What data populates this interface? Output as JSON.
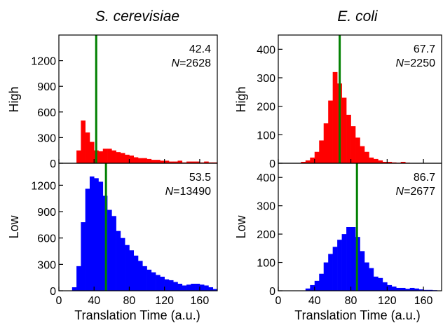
{
  "figure": {
    "columns": [
      {
        "title": "S. cerevisiae"
      },
      {
        "title": "E. coli"
      }
    ],
    "row_labels": [
      "High",
      "Low"
    ],
    "xlabel": "Translation Time (a.u.)"
  },
  "colors": {
    "high": "#ff0000",
    "low": "#0000ff",
    "median_line": "#008000"
  },
  "chart_data": [
    {
      "type": "bar",
      "panel": "S. cerevisiae / High",
      "xlim": [
        0,
        180
      ],
      "ylim": [
        0,
        1500
      ],
      "xticks": [
        "0",
        "40",
        "80",
        "120",
        "160"
      ],
      "yticks": [
        "0",
        "300",
        "600",
        "900",
        "1200"
      ],
      "bin_width": 5,
      "bins_start": [
        20,
        25,
        30,
        35,
        40,
        45,
        50,
        55,
        60,
        65,
        70,
        75,
        80,
        85,
        90,
        95,
        100,
        105,
        110,
        115,
        120,
        125,
        130,
        135,
        140,
        145,
        150,
        155,
        160,
        165,
        170,
        175
      ],
      "values": [
        150,
        500,
        360,
        250,
        150,
        140,
        170,
        170,
        150,
        130,
        120,
        100,
        90,
        70,
        60,
        60,
        50,
        40,
        40,
        30,
        30,
        20,
        20,
        30,
        10,
        20,
        20,
        20,
        10,
        20,
        10,
        10
      ],
      "median_x": 42.4,
      "annotation_value": "42.4",
      "annotation_n_label": "N",
      "annotation_n_value": "=2628"
    },
    {
      "type": "bar",
      "panel": "S. cerevisiae / Low",
      "xlim": [
        0,
        180
      ],
      "ylim": [
        0,
        1450
      ],
      "xticks": [
        "0",
        "40",
        "80",
        "120",
        "160"
      ],
      "yticks": [
        "0",
        "300",
        "600",
        "900",
        "1200"
      ],
      "bin_width": 5,
      "bins_start": [
        15,
        20,
        25,
        30,
        35,
        40,
        45,
        50,
        55,
        60,
        65,
        70,
        75,
        80,
        85,
        90,
        95,
        100,
        105,
        110,
        115,
        120,
        125,
        130,
        135,
        140,
        145,
        150,
        155,
        160,
        165,
        170,
        175
      ],
      "values": [
        40,
        280,
        780,
        1160,
        1300,
        1280,
        1240,
        1080,
        920,
        850,
        680,
        600,
        520,
        460,
        400,
        340,
        280,
        240,
        210,
        180,
        160,
        130,
        120,
        100,
        80,
        60,
        70,
        80,
        80,
        70,
        60,
        40,
        20
      ],
      "median_x": 53.5,
      "annotation_value": "53.5",
      "annotation_n_label": "N",
      "annotation_n_value": "=13490"
    },
    {
      "type": "bar",
      "panel": "E. coli / High",
      "xlim": [
        0,
        180
      ],
      "ylim": [
        0,
        450
      ],
      "xticks": [
        "0",
        "40",
        "80",
        "120",
        "160"
      ],
      "yticks": [
        "0",
        "100",
        "200",
        "300",
        "400"
      ],
      "bin_width": 5,
      "bins_start": [
        25,
        30,
        35,
        40,
        45,
        50,
        55,
        60,
        65,
        70,
        75,
        80,
        85,
        90,
        95,
        100,
        105,
        110,
        115,
        120,
        125,
        130,
        135,
        140,
        145,
        150,
        155,
        160
      ],
      "values": [
        5,
        10,
        20,
        40,
        80,
        140,
        220,
        320,
        280,
        230,
        170,
        130,
        90,
        60,
        40,
        20,
        15,
        10,
        5,
        5,
        3,
        2,
        5,
        2,
        1,
        1,
        0,
        1
      ],
      "median_x": 67.7,
      "annotation_value": "67.7",
      "annotation_n_label": "N",
      "annotation_n_value": "=2250"
    },
    {
      "type": "bar",
      "panel": "E. coli / Low",
      "xlim": [
        0,
        180
      ],
      "ylim": [
        0,
        450
      ],
      "xticks": [
        "0",
        "40",
        "80",
        "120",
        "160"
      ],
      "yticks": [
        "0",
        "100",
        "200",
        "300",
        "400"
      ],
      "bin_width": 5,
      "bins_start": [
        30,
        35,
        40,
        45,
        50,
        55,
        60,
        65,
        70,
        75,
        80,
        85,
        90,
        95,
        100,
        105,
        110,
        115,
        120,
        125,
        130,
        135,
        140,
        145,
        150,
        155,
        160,
        165,
        170,
        175
      ],
      "values": [
        8,
        20,
        35,
        60,
        100,
        130,
        155,
        180,
        200,
        225,
        225,
        190,
        140,
        100,
        80,
        50,
        45,
        30,
        20,
        15,
        10,
        10,
        7,
        10,
        8,
        5,
        3,
        3,
        2,
        1
      ],
      "median_x": 86.7,
      "annotation_value": "86.7",
      "annotation_n_label": "N",
      "annotation_n_value": "=2677"
    }
  ]
}
